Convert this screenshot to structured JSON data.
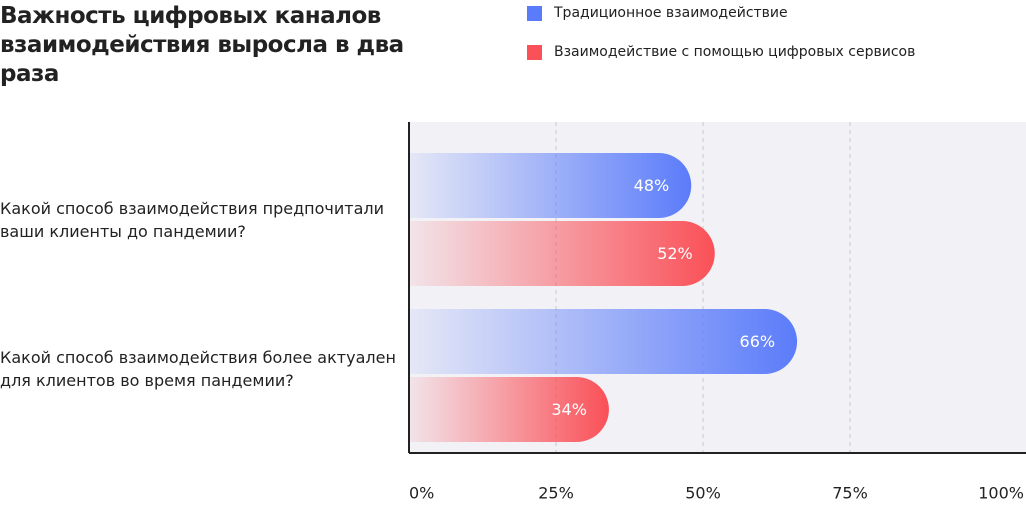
{
  "chart_data": {
    "type": "bar",
    "orientation": "horizontal",
    "title": "Важность цифровых каналов взаимодействия выросла в два раза",
    "categories": [
      "Какой способ взаимодействия предпочитали ваши клиенты до пандемии?",
      "Какой способ взаимодействия более актуален для клиентов во время пандемии?"
    ],
    "series": [
      {
        "name": "Традиционное взаимодействие",
        "color": "#5b7cfa",
        "values": [
          48,
          66
        ],
        "value_labels": [
          "48%",
          "66%"
        ]
      },
      {
        "name": "Взаимодействие с помощью цифровых сервисов",
        "color": "#fa5057",
        "values": [
          52,
          34
        ],
        "value_labels": [
          "52%",
          "34%"
        ]
      }
    ],
    "xlim": [
      0,
      100
    ],
    "xticks": [
      {
        "value": 0,
        "label": "0%"
      },
      {
        "value": 25,
        "label": "25%"
      },
      {
        "value": 50,
        "label": "50%"
      },
      {
        "value": 75,
        "label": "75%"
      },
      {
        "value": 100,
        "label": "100%"
      }
    ],
    "grid": true
  }
}
